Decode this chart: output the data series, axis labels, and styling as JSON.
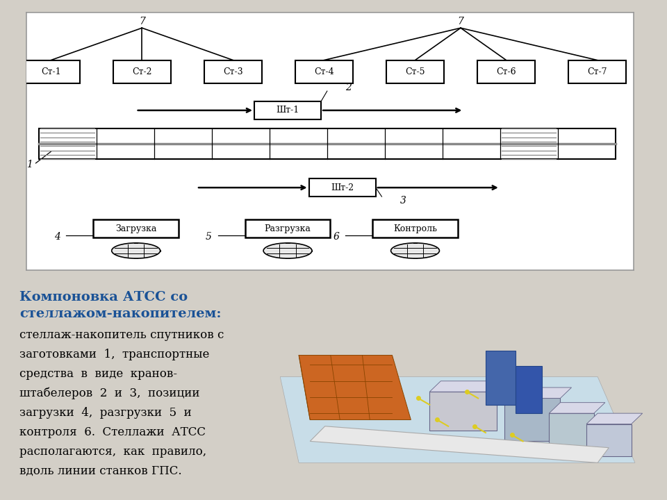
{
  "bg_color": "#d3cfc7",
  "diagram_bg": "#f5f5f0",
  "diagram_border": "#aaaaaa",
  "text_color": "#000000",
  "blue_title_color": "#1a5296",
  "stations": [
    "Ст-1",
    "Ст-2",
    "Ст-3",
    "Ст-4",
    "Ст-5",
    "Ст-6",
    "Ст-7"
  ],
  "group1_stations": [
    0,
    1,
    2
  ],
  "group2_stations": [
    3,
    4,
    5,
    6
  ],
  "group1_label": "7",
  "group2_label": "7",
  "sht1_label": "Шт-1",
  "sht2_label": "Шт-2",
  "label_1": "1",
  "label_2": "2",
  "label_3": "3",
  "label_4": "4",
  "label_5": "5",
  "label_6": "6",
  "loading_boxes": [
    "Загрузка",
    "Разгрузка",
    "Контроль"
  ],
  "bold_title_1": "Компоновка АТСС со",
  "bold_title_2": "стеллажом-накопителем:",
  "body_lines": [
    "стеллаж-накопитель спутников с",
    "заготовками  1,  транспортные",
    "средства  в  виде  кранов-",
    "штабелеров  2  и  3,  позиции",
    "загрузки  4,  разгрузки  5  и",
    "контроля  6.  Стеллажи  АТСС",
    "располагаются,  как  правило,",
    "вдоль линии станков ГПС."
  ]
}
